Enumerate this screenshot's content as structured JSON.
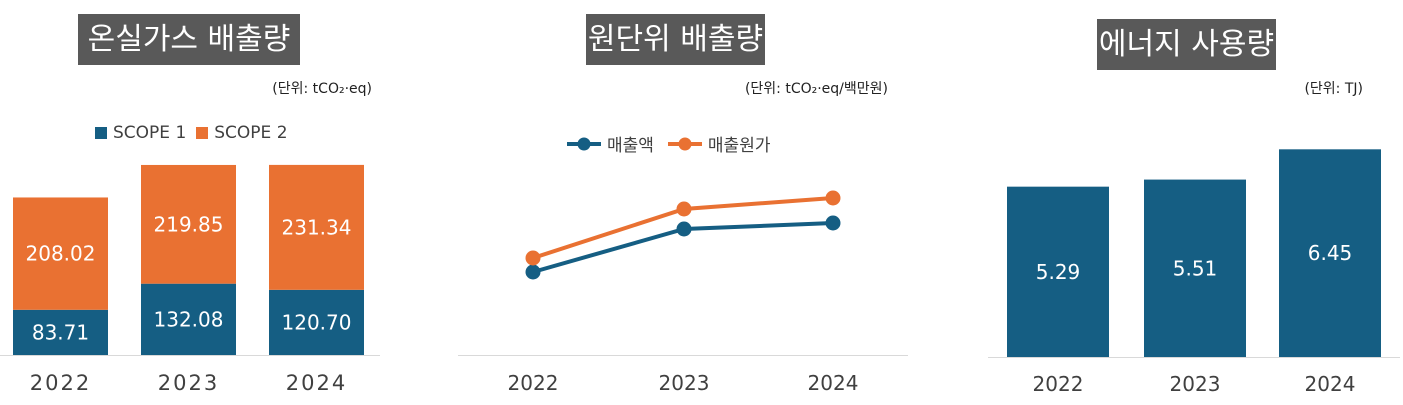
{
  "colors": {
    "scope1": "#155E83",
    "scope2": "#E97132",
    "axis": "#D9D9D9",
    "label": "#404040"
  },
  "charts": {
    "ghg": {
      "title": "온실가스 배출량",
      "unit": "(단위: tCO₂·eq)",
      "legend": [
        "SCOPE 1",
        "SCOPE 2"
      ]
    },
    "intensity": {
      "title": "원단위 배출량",
      "unit": "(단위: tCO₂·eq/백만원)",
      "legend": [
        "매출액",
        "매출원가"
      ]
    },
    "energy": {
      "title": "에너지 사용량",
      "unit": "(단위: TJ)"
    }
  },
  "chart_data": [
    {
      "type": "bar",
      "stacked": true,
      "title": "온실가스 배출량",
      "ylabel": "tCO₂·eq",
      "categories": [
        "2022",
        "2023",
        "2024"
      ],
      "series": [
        {
          "name": "SCOPE 1",
          "values": [
            83.71,
            132.08,
            120.7
          ],
          "labels": [
            "83.71",
            "132.08",
            "120.70"
          ]
        },
        {
          "name": "SCOPE 2",
          "values": [
            208.02,
            219.85,
            231.34
          ],
          "labels": [
            "208.02",
            "219.85",
            "231.34"
          ]
        }
      ],
      "legend": "top"
    },
    {
      "type": "line",
      "title": "원단위 배출량",
      "ylabel": "tCO₂·eq/백만원",
      "categories": [
        "2022",
        "2023",
        "2024"
      ],
      "series": [
        {
          "name": "매출액",
          "values": [
            83,
            126,
            132
          ]
        },
        {
          "name": "매출원가",
          "values": [
            97,
            146,
            157
          ]
        }
      ],
      "note": "values estimated, no axis shown",
      "legend": "top"
    },
    {
      "type": "bar",
      "title": "에너지 사용량",
      "ylabel": "TJ",
      "categories": [
        "2022",
        "2023",
        "2024"
      ],
      "series": [
        {
          "name": "에너지 사용량",
          "values": [
            5.29,
            5.51,
            6.45
          ],
          "labels": [
            "5.29",
            "5.51",
            "6.45"
          ]
        }
      ]
    }
  ]
}
